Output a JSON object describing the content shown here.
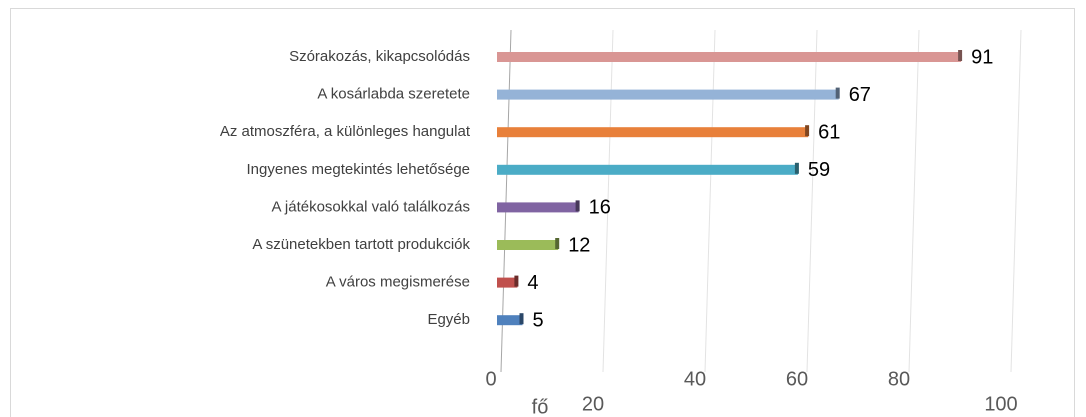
{
  "chart_data": {
    "type": "bar",
    "orientation": "horizontal",
    "categories": [
      "Szórakozás, kikapcsolódás",
      "A kosárlabda szeretete",
      "Az atmoszféra, a különleges hangulat",
      "Ingyenes megtekintés lehetősége",
      "A játékosokkal való találkozás",
      "A szünetekben tartott produkciók",
      "A város megismerése",
      "Egyéb"
    ],
    "values": [
      91,
      67,
      61,
      59,
      16,
      12,
      4,
      5
    ],
    "colors": [
      "#d99694",
      "#95b3d7",
      "#e8803a",
      "#4bacc6",
      "#8064a2",
      "#9bbb59",
      "#c0504d",
      "#4f81bd"
    ],
    "xlim": [
      0,
      100
    ],
    "xticks": [
      0,
      20,
      40,
      60,
      80,
      100
    ],
    "x_label": "fő",
    "grid": true
  }
}
